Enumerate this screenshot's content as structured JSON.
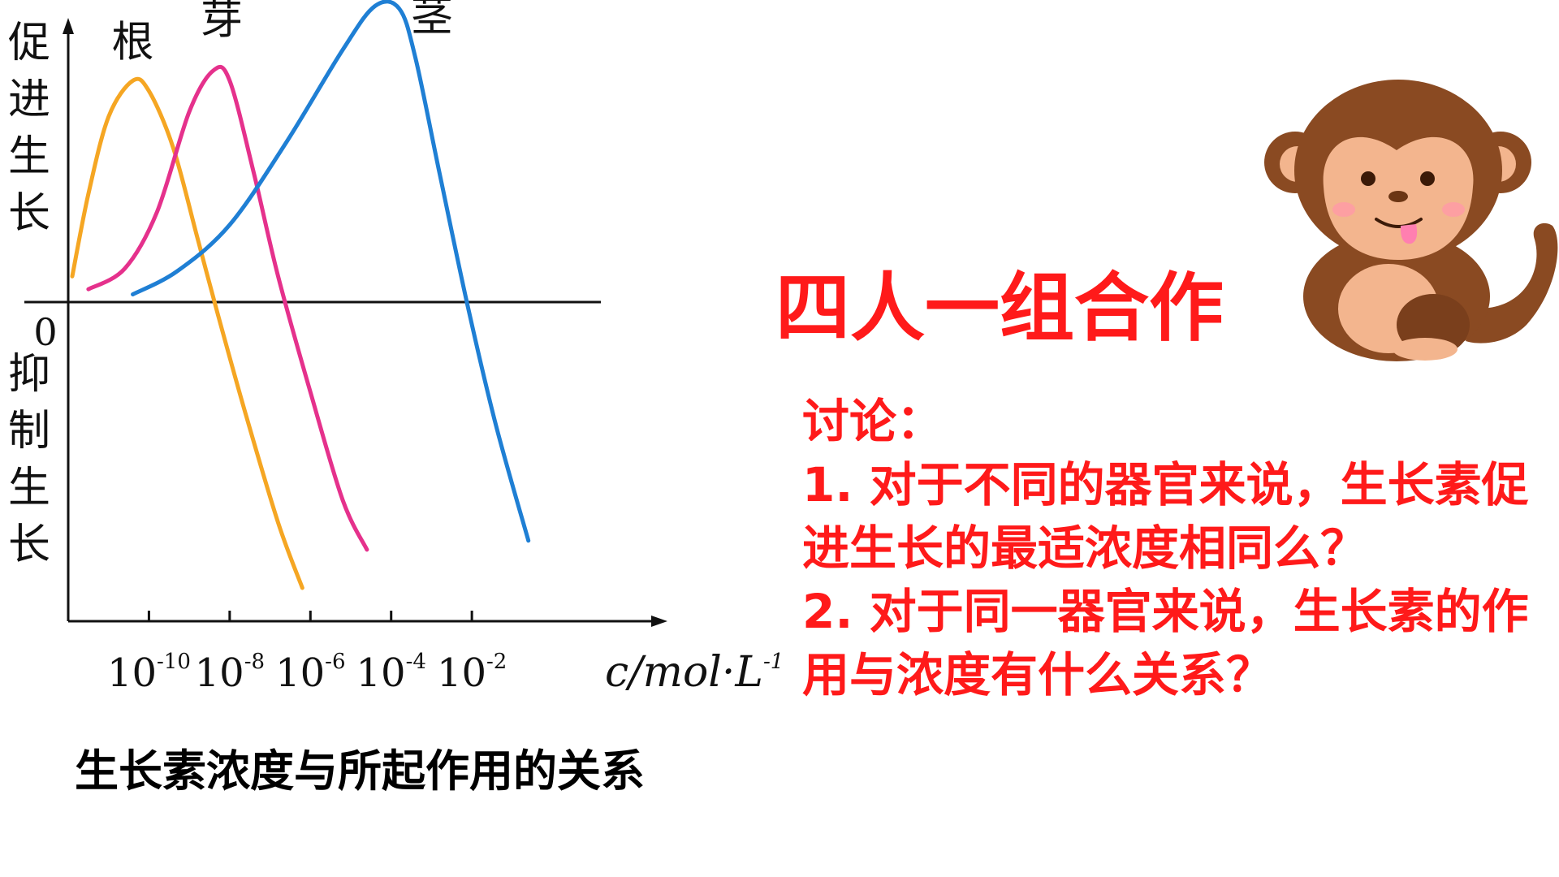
{
  "chart_data": {
    "type": "line",
    "y_axis_labels": {
      "top": "促进生长",
      "zero": "0",
      "bottom": "抑制生长"
    },
    "x_ticks": [
      "10-10",
      "10-8",
      "10-6",
      "10-4",
      "10-2"
    ],
    "xlabel": "c/mol·L-1",
    "x_scale": "log10",
    "x_range_log10": [
      -12,
      2
    ],
    "y_range": [
      -1.4,
      1
    ],
    "series": [
      {
        "name": "根",
        "color": "#f5a623",
        "points": [
          [
            -11.9,
            0.1
          ],
          [
            -11.5,
            0.42
          ],
          [
            -11.0,
            0.72
          ],
          [
            -10.4,
            0.86
          ],
          [
            -10.0,
            0.82
          ],
          [
            -9.4,
            0.6
          ],
          [
            -8.8,
            0.25
          ],
          [
            -8.3,
            -0.05
          ],
          [
            -7.6,
            -0.5
          ],
          [
            -6.8,
            -0.98
          ],
          [
            -6.2,
            -1.27
          ]
        ]
      },
      {
        "name": "芽",
        "color": "#e5318c",
        "points": [
          [
            -11.5,
            0.05
          ],
          [
            -10.6,
            0.13
          ],
          [
            -9.8,
            0.35
          ],
          [
            -9.0,
            0.74
          ],
          [
            -8.4,
            0.9
          ],
          [
            -8.0,
            0.86
          ],
          [
            -7.4,
            0.5
          ],
          [
            -6.8,
            0.1
          ],
          [
            -6.0,
            -0.4
          ],
          [
            -5.2,
            -0.88
          ],
          [
            -4.6,
            -1.1
          ]
        ]
      },
      {
        "name": "茎",
        "color": "#1f7fd4",
        "points": [
          [
            -10.4,
            0.03
          ],
          [
            -9.3,
            0.12
          ],
          [
            -8.0,
            0.3
          ],
          [
            -6.6,
            0.62
          ],
          [
            -5.2,
            0.98
          ],
          [
            -4.4,
            1.15
          ],
          [
            -3.8,
            1.14
          ],
          [
            -3.4,
            0.95
          ],
          [
            -2.8,
            0.5
          ],
          [
            -2.1,
            -0.02
          ],
          [
            -1.4,
            -0.55
          ],
          [
            -0.6,
            -1.06
          ]
        ]
      }
    ]
  },
  "caption": "生长素浓度与所起作用的关系",
  "heading": "四人一组合作",
  "discussion": {
    "title": "讨论：",
    "q1": "1. 对于不同的器官来说，生长素促进生长的最适浓度相同么？",
    "q2": "2. 对于同一器官来说，生长素的作用与浓度有什么关系？"
  },
  "colors": {
    "accent": "#ff1a1a",
    "root": "#f5a623",
    "bud": "#e5318c",
    "stem": "#1f7fd4"
  },
  "illustration": "cartoon-monkey"
}
